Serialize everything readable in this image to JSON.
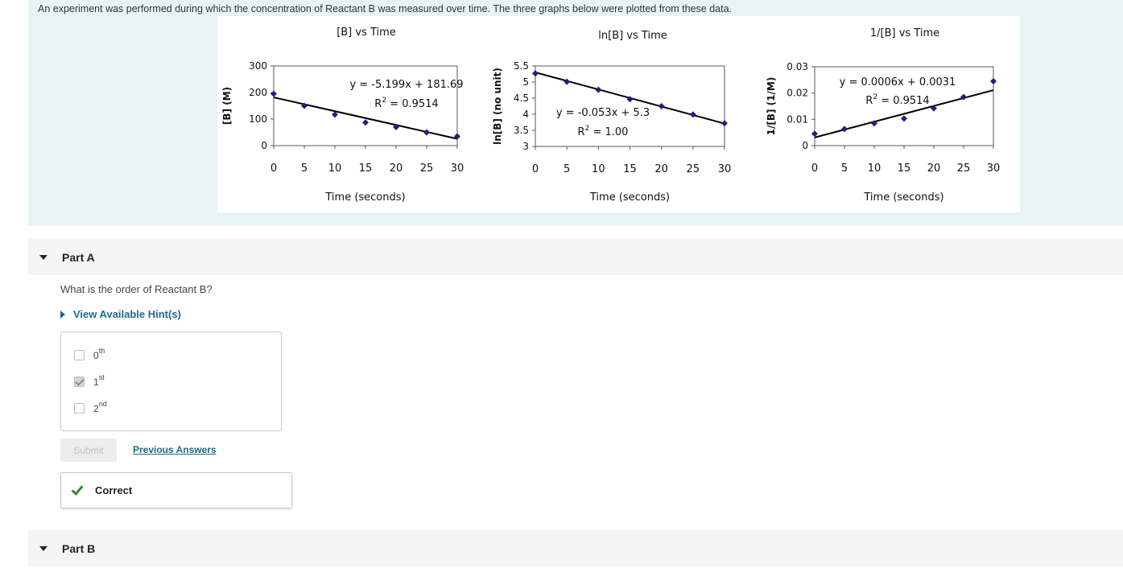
{
  "intro": {
    "text": "An experiment was performed during which the concentration of Reactant B was measured over time. The three graphs below were plotted from these data."
  },
  "chart_data": [
    {
      "type": "scatter",
      "title": "[B] vs Time",
      "xlabel": "Time (seconds)",
      "ylabel": "[B] (M)",
      "x": [
        0,
        5,
        10,
        15,
        20,
        25,
        30
      ],
      "y": [
        195,
        150,
        117,
        87,
        70,
        50,
        35
      ],
      "xlim": [
        0,
        30
      ],
      "ylim": [
        0,
        300
      ],
      "xticks": [
        "0",
        "5",
        "10",
        "15",
        "20",
        "25",
        "30"
      ],
      "yticks": [
        "0",
        "100",
        "200",
        "300"
      ],
      "trendline": {
        "slope": -5.199,
        "intercept": 181.69
      },
      "equation": "y = -5.199x + 181.69",
      "r2_label": "R",
      "r2_value": " = 0.9514",
      "grid": false
    },
    {
      "type": "scatter",
      "title": "ln[B] vs Time",
      "xlabel": "Time (seconds)",
      "ylabel": "ln[B] (no unit)",
      "x": [
        0,
        5,
        10,
        15,
        20,
        25,
        30
      ],
      "y": [
        5.27,
        5.01,
        4.76,
        4.47,
        4.25,
        3.99,
        3.72
      ],
      "xlim": [
        0,
        30
      ],
      "ylim": [
        3,
        5.5
      ],
      "xticks": [
        "0",
        "5",
        "10",
        "15",
        "20",
        "25",
        "30"
      ],
      "yticks": [
        "3",
        "3.5",
        "4",
        "4.5",
        "5",
        "5.5"
      ],
      "trendline": {
        "slope": -0.053,
        "intercept": 5.3
      },
      "equation": "y = -0.053x + 5.3",
      "r2_label": "R",
      "r2_value": " = 1.00",
      "grid": false
    },
    {
      "type": "scatter",
      "title": "1/[B] vs Time",
      "xlabel": "Time (seconds)",
      "ylabel": "1/[B] (1/M)",
      "x": [
        0,
        5,
        10,
        15,
        20,
        25,
        30
      ],
      "y": [
        0.0045,
        0.0063,
        0.0085,
        0.0103,
        0.0142,
        0.0185,
        0.0245
      ],
      "xlim": [
        0,
        30
      ],
      "ylim": [
        0,
        0.03
      ],
      "xticks": [
        "0",
        "5",
        "10",
        "15",
        "20",
        "25",
        "30"
      ],
      "yticks": [
        "0",
        "0.01",
        "0.02",
        "0.03"
      ],
      "trendline": {
        "slope": 0.0006,
        "intercept": 0.0031
      },
      "equation": "y = 0.0006x + 0.0031",
      "r2_label": "R",
      "r2_value": " = 0.9514",
      "grid": false
    }
  ],
  "r2_superscript": "2",
  "partA": {
    "title": "Part A",
    "question": "What is the order of Reactant B?",
    "hints_label": "View Available Hint(s)",
    "options": [
      {
        "base": "0",
        "sup": "th",
        "checked": false
      },
      {
        "base": "1",
        "sup": "st",
        "checked": true
      },
      {
        "base": "2",
        "sup": "nd",
        "checked": false
      }
    ],
    "submit_label": "Submit",
    "previous_answers_label": "Previous Answers",
    "feedback_label": "Correct"
  },
  "partB": {
    "title": "Part B"
  },
  "colors": {
    "intro_band": "#e8f4f4",
    "marker": "#1a237e",
    "link": "#1a6a8e",
    "correct_check": "#2e8b2e"
  }
}
